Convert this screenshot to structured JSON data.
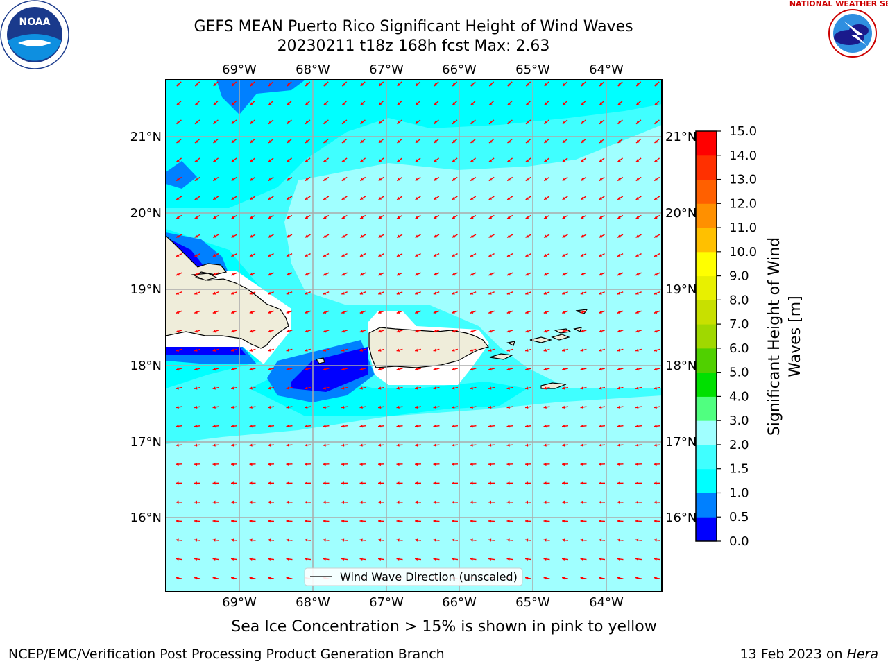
{
  "title": {
    "line1": "GEFS MEAN Puerto Rico Significant Height of Wind Waves",
    "line2": "20230211 t18z 168h fcst   Max: 2.63"
  },
  "map": {
    "lon_labels": [
      "69°W",
      "68°W",
      "67°W",
      "66°W",
      "65°W",
      "64°W"
    ],
    "lat_labels": [
      "21°N",
      "20°N",
      "19°N",
      "18°N",
      "17°N",
      "16°N"
    ],
    "legend_label": "Wind Wave Direction (unscaled)",
    "colors": {
      "ocean_low": "#00ffff",
      "ocean_mid": "#40ffff",
      "ocean_high": "#a0ffff",
      "blue": "#0000ff",
      "med_blue": "#0080ff",
      "land": "#efedda",
      "arrow": "#ff0000",
      "grid": "#aaaaaa"
    }
  },
  "colorbar": {
    "label_line1": "Significant Height of Wind",
    "label_line2": "Waves [m]",
    "ticks": [
      "0.0",
      "0.5",
      "1.0",
      "1.5",
      "2.0",
      "3.0",
      "4.0",
      "5.0",
      "6.0",
      "7.0",
      "8.0",
      "9.0",
      "10.0",
      "11.0",
      "12.0",
      "13.0",
      "14.0",
      "15.0"
    ],
    "colors": [
      "#0000ff",
      "#0080ff",
      "#00ffff",
      "#40ffff",
      "#a0ffff",
      "#50ff80",
      "#00e000",
      "#50d000",
      "#a0d800",
      "#c8e000",
      "#e8f000",
      "#ffff00",
      "#ffc000",
      "#ff9000",
      "#ff6000",
      "#ff3000",
      "#ff0000"
    ]
  },
  "subcaption": "Sea Ice Concentration > 15% is shown in pink to yellow",
  "footer": {
    "left": "NCEP/EMC/Verification Post Processing Product Generation Branch",
    "right_date": "13 Feb 2023 on ",
    "right_host": "Hera"
  },
  "logos": {
    "noaa_text": "NOAA",
    "nws_text": "NATIONAL WEATHER SERVICE"
  }
}
